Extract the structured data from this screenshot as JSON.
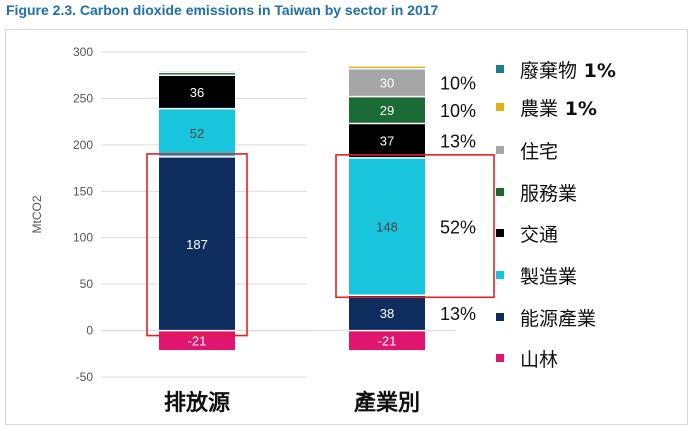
{
  "figure_title": "Figure 2.3. Carbon dioxide emissions in Taiwan by sector in 2017",
  "chart_data": {
    "type": "bar",
    "stacked": true,
    "categories": [
      "排放源",
      "產業別"
    ],
    "ylabel": "MtCO2",
    "xlabel": "",
    "ylim": [
      -50,
      300
    ],
    "yticks": [
      -50,
      0,
      50,
      100,
      150,
      200,
      250,
      300
    ],
    "grid": "horizontal",
    "legend_position": "right",
    "series": [
      {
        "name": "山林",
        "color": "#e0156f",
        "values": [
          -21,
          -21
        ],
        "labels": [
          "-21",
          "-21"
        ]
      },
      {
        "name": "能源產業",
        "color": "#0d2d5e",
        "values": [
          187,
          38
        ],
        "labels": [
          "187",
          "38"
        ]
      },
      {
        "name": "製造業",
        "color": "#19c5dc",
        "values": [
          52,
          148
        ],
        "labels": [
          "52",
          "148"
        ]
      },
      {
        "name": "交通",
        "color": "#000000",
        "values": [
          36,
          37
        ],
        "labels": [
          "36",
          "37"
        ]
      },
      {
        "name": "服務業",
        "color": "#1a6b35",
        "values": [
          3,
          29
        ],
        "labels": [
          "",
          "29"
        ]
      },
      {
        "name": "住宅",
        "color": "#a6a6a6",
        "values": [
          2,
          30
        ],
        "labels": [
          "",
          "30"
        ]
      },
      {
        "name": "農業",
        "color": "#e3b015",
        "values": [
          1,
          3
        ],
        "labels": [
          "",
          ""
        ]
      },
      {
        "name": "廢棄物",
        "color": "#1e7f8a",
        "values": [
          1,
          0
        ],
        "labels": [
          "",
          ""
        ]
      }
    ],
    "percent_annotations": [
      {
        "series": "住宅",
        "category": "產業別",
        "text": "10%"
      },
      {
        "series": "服務業",
        "category": "產業別",
        "text": "10%"
      },
      {
        "series": "交通",
        "category": "產業別",
        "text": "13%"
      },
      {
        "series": "製造業",
        "category": "產業別",
        "text": "52%"
      },
      {
        "series": "能源產業",
        "category": "產業別",
        "text": "13%"
      }
    ],
    "highlight_boxes": [
      {
        "category": "排放源",
        "series": [
          "能源產業"
        ]
      },
      {
        "category": "產業別",
        "series": [
          "製造業"
        ]
      }
    ]
  },
  "legend": [
    {
      "label": "廢棄物",
      "suffix": " 1%",
      "color": "#1e7f8a"
    },
    {
      "label": "農業",
      "suffix": " 1%",
      "color": "#e3b015"
    },
    {
      "label": "住宅",
      "suffix": "",
      "color": "#a6a6a6"
    },
    {
      "label": "服務業",
      "suffix": "",
      "color": "#1a6b35"
    },
    {
      "label": "交通",
      "suffix": "",
      "color": "#000000"
    },
    {
      "label": "製造業",
      "suffix": "",
      "color": "#19c5dc"
    },
    {
      "label": "能源產業",
      "suffix": "",
      "color": "#0d2d5e"
    },
    {
      "label": "山林",
      "suffix": "",
      "color": "#e0156f"
    }
  ]
}
